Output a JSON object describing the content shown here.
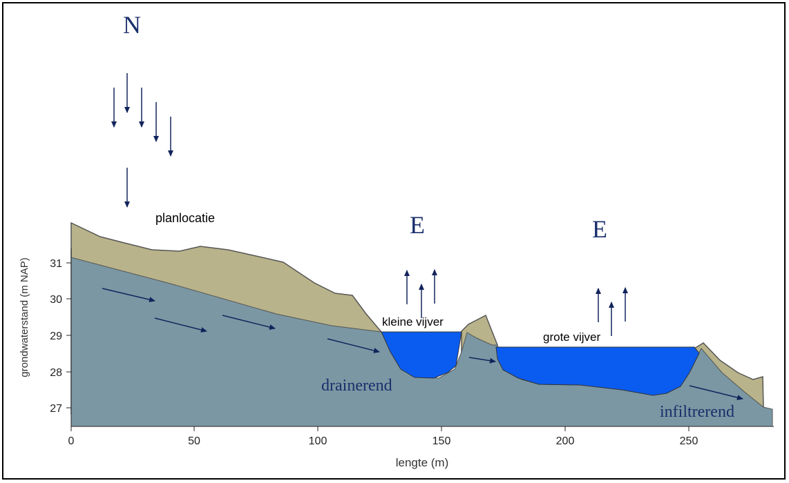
{
  "diagram": {
    "labels": {
      "precipitation": "N",
      "evaporation_small": "E",
      "evaporation_large": "E",
      "plan_site": "planlocatie",
      "small_pond": "kleine vijver",
      "large_pond": "grote vijver",
      "draining": "drainerend",
      "infiltrating": "infiltrerend"
    },
    "axes": {
      "xlabel": "lengte (m)",
      "ylabel": "grondwaterstand (m NAP)",
      "xticks": [
        "0",
        "50",
        "100",
        "150",
        "200",
        "250"
      ],
      "yticks": [
        "31",
        "30",
        "29",
        "28",
        "27"
      ]
    },
    "colors": {
      "surface": "#b8b38a",
      "groundwater": "#7b97a3",
      "pond": "#0a5cf0",
      "arrow": "#12245c",
      "label_blue": "#1a2f6b"
    }
  }
}
